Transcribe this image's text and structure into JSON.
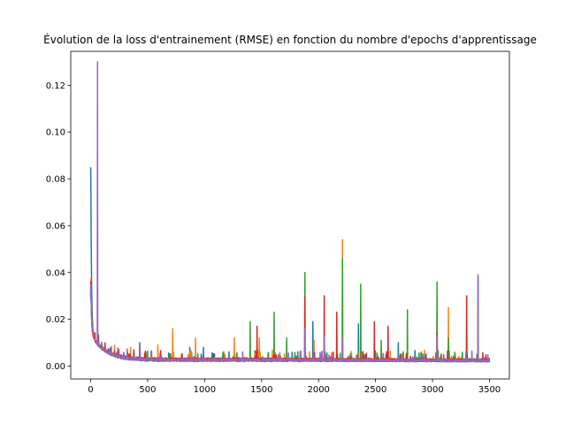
{
  "chart_data": {
    "type": "line",
    "title": "Évolution de la loss d'entrainement (RMSE) en fonction du nombre d'epochs d'apprentissage",
    "xlabel": "",
    "ylabel": "",
    "xlim": [
      -175,
      3675
    ],
    "ylim": [
      -0.0055,
      0.1345
    ],
    "x_ticks": [
      0,
      500,
      1000,
      1500,
      2000,
      2500,
      3000,
      3500
    ],
    "y_ticks": [
      0.0,
      0.02,
      0.04,
      0.06,
      0.08,
      0.1,
      0.12
    ],
    "x_tick_labels": [
      "0",
      "500",
      "1000",
      "1500",
      "2000",
      "2500",
      "3000",
      "3500"
    ],
    "y_tick_labels": [
      "0.00",
      "0.02",
      "0.04",
      "0.06",
      "0.08",
      "0.10",
      "0.12"
    ],
    "grid": false,
    "legend": "none",
    "n_epochs": 3500,
    "series": [
      {
        "color": "#1f77b4",
        "start": 0.085,
        "plateau": 0.0025,
        "floor": 0.0015,
        "spikes": [
          [
            430,
            0.01
          ],
          [
            870,
            0.008
          ],
          [
            990,
            0.008
          ],
          [
            1950,
            0.019
          ],
          [
            2350,
            0.018
          ],
          [
            2700,
            0.01
          ],
          [
            2900,
            0.006
          ],
          [
            3400,
            0.038
          ]
        ]
      },
      {
        "color": "#ff7f0e",
        "start": 0.033,
        "plateau": 0.0028,
        "floor": 0.0016,
        "spikes": [
          [
            350,
            0.008
          ],
          [
            590,
            0.009
          ],
          [
            720,
            0.016
          ],
          [
            920,
            0.012
          ],
          [
            1260,
            0.012
          ],
          [
            1480,
            0.012
          ],
          [
            1960,
            0.011
          ],
          [
            2210,
            0.054
          ],
          [
            2370,
            0.009
          ],
          [
            3040,
            0.025
          ],
          [
            3140,
            0.025
          ],
          [
            3300,
            0.018
          ]
        ]
      },
      {
        "color": "#2ca02c",
        "start": 0.03,
        "plateau": 0.0027,
        "floor": 0.0015,
        "spikes": [
          [
            1400,
            0.019
          ],
          [
            1610,
            0.023
          ],
          [
            1720,
            0.012
          ],
          [
            1880,
            0.04
          ],
          [
            2210,
            0.046
          ],
          [
            2370,
            0.035
          ],
          [
            2550,
            0.011
          ],
          [
            2780,
            0.024
          ],
          [
            3040,
            0.036
          ],
          [
            3140,
            0.012
          ]
        ]
      },
      {
        "color": "#d62728",
        "start": 0.031,
        "plateau": 0.0029,
        "floor": 0.0016,
        "spikes": [
          [
            1460,
            0.017
          ],
          [
            1880,
            0.03
          ],
          [
            2050,
            0.03
          ],
          [
            2160,
            0.023
          ],
          [
            2490,
            0.019
          ],
          [
            2610,
            0.017
          ],
          [
            3040,
            0.014
          ],
          [
            3300,
            0.03
          ]
        ]
      },
      {
        "color": "#9467bd",
        "start": 0.029,
        "plateau": 0.0026,
        "floor": 0.0014,
        "spikes": [
          [
            60,
            0.13
          ],
          [
            1880,
            0.016
          ],
          [
            2050,
            0.013
          ],
          [
            2210,
            0.012
          ],
          [
            3040,
            0.013
          ],
          [
            3400,
            0.039
          ]
        ]
      }
    ]
  }
}
